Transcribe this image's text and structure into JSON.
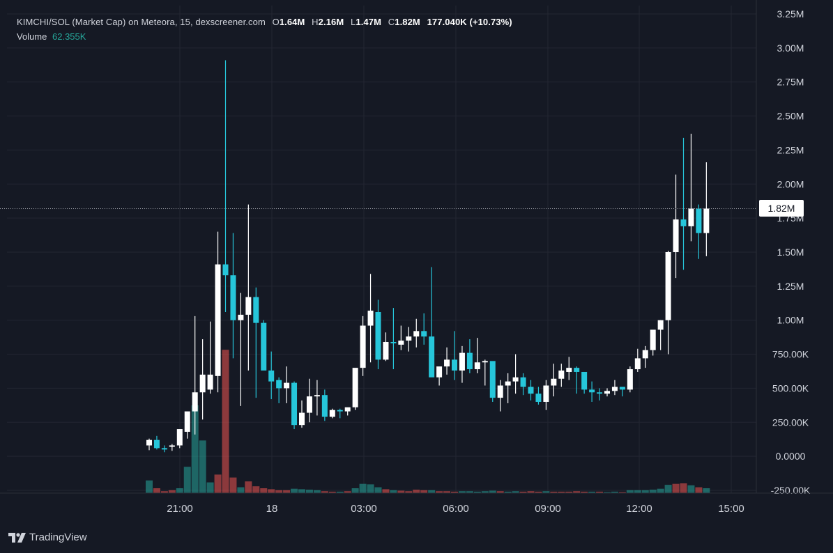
{
  "legend": {
    "pair": "KIMCHI/SOL (Market Cap) on Meteora, 15, dexscreener.com",
    "o_label": "O",
    "o_value": "1.64M",
    "h_label": "H",
    "h_value": "2.16M",
    "l_label": "L",
    "l_value": "1.47M",
    "c_label": "C",
    "c_value": "1.82M",
    "change": "177.040K (+10.73%)",
    "volume_label": "Volume",
    "volume_value": "62.355K"
  },
  "price_tag": "1.82M",
  "branding": "TradingView",
  "colors": {
    "up": "#ffffff",
    "down": "#26c6da",
    "vol_up": "#26a69a",
    "vol_down": "#ef5350",
    "grid": "#232632",
    "text": "#d1d4dc",
    "bg": "#151924"
  },
  "chart_data": {
    "type": "candlestick",
    "y_ticks": [
      "3.25M",
      "3.00M",
      "2.75M",
      "2.50M",
      "2.25M",
      "2.00M",
      "1.75M",
      "1.50M",
      "1.25M",
      "1.00M",
      "750.00K",
      "500.00K",
      "250.00K",
      "0.0000",
      "-250.00K"
    ],
    "y_tick_values": [
      3250000,
      3000000,
      2750000,
      2500000,
      2250000,
      2000000,
      1750000,
      1500000,
      1250000,
      1000000,
      750000,
      500000,
      250000,
      0,
      -250000
    ],
    "x_ticks": [
      "21:00",
      "18",
      "03:00",
      "06:00",
      "09:00",
      "12:00",
      "15:00"
    ],
    "ylim": [
      -250000,
      3250000
    ],
    "last_price": 1820000,
    "grid": true,
    "candles": [
      [
        80,
        130,
        45,
        120
      ],
      [
        120,
        150,
        50,
        60
      ],
      [
        60,
        80,
        30,
        50
      ],
      [
        70,
        90,
        40,
        80
      ],
      [
        80,
        200,
        60,
        200
      ],
      [
        180,
        320,
        130,
        330
      ],
      [
        330,
        1030,
        160,
        470
      ],
      [
        470,
        860,
        270,
        600
      ],
      [
        490,
        990,
        460,
        600
      ],
      [
        590,
        1650,
        470,
        1410
      ],
      [
        1410,
        2910,
        1060,
        1330
      ],
      [
        1330,
        1640,
        720,
        1000
      ],
      [
        1000,
        1200,
        370,
        1040
      ],
      [
        1040,
        1850,
        630,
        1170
      ],
      [
        1170,
        1240,
        430,
        980
      ],
      [
        980,
        1000,
        640,
        630
      ],
      [
        630,
        770,
        420,
        550
      ],
      [
        560,
        580,
        390,
        500
      ],
      [
        500,
        660,
        390,
        540
      ],
      [
        540,
        550,
        200,
        230
      ],
      [
        230,
        410,
        210,
        320
      ],
      [
        320,
        570,
        250,
        440
      ],
      [
        440,
        560,
        300,
        450
      ],
      [
        450,
        490,
        260,
        290
      ],
      [
        290,
        350,
        280,
        340
      ],
      [
        340,
        350,
        280,
        330
      ],
      [
        330,
        340,
        300,
        360
      ],
      [
        360,
        620,
        340,
        650
      ],
      [
        650,
        1030,
        590,
        960
      ],
      [
        960,
        1340,
        690,
        1070
      ],
      [
        1060,
        1150,
        640,
        710
      ],
      [
        710,
        910,
        700,
        840
      ],
      [
        840,
        1090,
        640,
        830
      ],
      [
        820,
        960,
        780,
        850
      ],
      [
        850,
        950,
        770,
        880
      ],
      [
        880,
        1010,
        800,
        920
      ],
      [
        920,
        1050,
        820,
        880
      ],
      [
        880,
        1390,
        760,
        580
      ],
      [
        580,
        650,
        520,
        660
      ],
      [
        660,
        800,
        600,
        710
      ],
      [
        710,
        920,
        560,
        630
      ],
      [
        630,
        810,
        540,
        760
      ],
      [
        760,
        860,
        610,
        640
      ],
      [
        640,
        870,
        610,
        690
      ],
      [
        690,
        710,
        520,
        700
      ],
      [
        700,
        670,
        400,
        430
      ],
      [
        430,
        560,
        330,
        520
      ],
      [
        520,
        610,
        390,
        550
      ],
      [
        550,
        750,
        460,
        580
      ],
      [
        580,
        610,
        450,
        510
      ],
      [
        510,
        560,
        410,
        460
      ],
      [
        460,
        510,
        380,
        400
      ],
      [
        400,
        560,
        340,
        520
      ],
      [
        520,
        680,
        440,
        570
      ],
      [
        570,
        680,
        510,
        630
      ],
      [
        620,
        730,
        560,
        650
      ],
      [
        650,
        660,
        460,
        620
      ],
      [
        620,
        620,
        460,
        490
      ],
      [
        490,
        550,
        400,
        470
      ],
      [
        470,
        500,
        410,
        460
      ],
      [
        460,
        500,
        440,
        480
      ],
      [
        480,
        560,
        450,
        510
      ],
      [
        510,
        510,
        440,
        490
      ],
      [
        490,
        660,
        470,
        640
      ],
      [
        640,
        790,
        620,
        720
      ],
      [
        720,
        810,
        650,
        780
      ],
      [
        780,
        920,
        740,
        930
      ],
      [
        930,
        1000,
        780,
        1000
      ],
      [
        1000,
        1510,
        750,
        1500
      ],
      [
        1500,
        2070,
        1310,
        1740
      ],
      [
        1740,
        2340,
        1370,
        1690
      ],
      [
        1690,
        2370,
        1580,
        1820
      ],
      [
        1820,
        1850,
        1450,
        1640
      ],
      [
        1640,
        2160,
        1470,
        1820
      ]
    ],
    "volume": [
      [
        130,
        "up"
      ],
      [
        50,
        "down"
      ],
      [
        20,
        "down"
      ],
      [
        30,
        "down"
      ],
      [
        50,
        "up"
      ],
      [
        270,
        "up"
      ],
      [
        900,
        "up"
      ],
      [
        540,
        "up"
      ],
      [
        110,
        "up"
      ],
      [
        190,
        "down"
      ],
      [
        1470,
        "down"
      ],
      [
        160,
        "down"
      ],
      [
        60,
        "up"
      ],
      [
        120,
        "down"
      ],
      [
        70,
        "down"
      ],
      [
        50,
        "down"
      ],
      [
        40,
        "down"
      ],
      [
        30,
        "down"
      ],
      [
        30,
        "down"
      ],
      [
        45,
        "up"
      ],
      [
        40,
        "up"
      ],
      [
        35,
        "up"
      ],
      [
        30,
        "up"
      ],
      [
        20,
        "down"
      ],
      [
        15,
        "down"
      ],
      [
        15,
        "up"
      ],
      [
        20,
        "down"
      ],
      [
        50,
        "up"
      ],
      [
        95,
        "up"
      ],
      [
        90,
        "up"
      ],
      [
        60,
        "up"
      ],
      [
        40,
        "down"
      ],
      [
        30,
        "up"
      ],
      [
        25,
        "down"
      ],
      [
        20,
        "down"
      ],
      [
        35,
        "down"
      ],
      [
        30,
        "down"
      ],
      [
        30,
        "up"
      ],
      [
        20,
        "down"
      ],
      [
        20,
        "down"
      ],
      [
        15,
        "down"
      ],
      [
        20,
        "up"
      ],
      [
        20,
        "up"
      ],
      [
        15,
        "up"
      ],
      [
        20,
        "up"
      ],
      [
        25,
        "up"
      ],
      [
        20,
        "down"
      ],
      [
        15,
        "up"
      ],
      [
        20,
        "up"
      ],
      [
        15,
        "down"
      ],
      [
        20,
        "down"
      ],
      [
        15,
        "down"
      ],
      [
        20,
        "up"
      ],
      [
        15,
        "down"
      ],
      [
        15,
        "down"
      ],
      [
        15,
        "down"
      ],
      [
        20,
        "down"
      ],
      [
        15,
        "down"
      ],
      [
        15,
        "up"
      ],
      [
        15,
        "down"
      ],
      [
        10,
        "up"
      ],
      [
        15,
        "up"
      ],
      [
        10,
        "down"
      ],
      [
        30,
        "up"
      ],
      [
        30,
        "up"
      ],
      [
        30,
        "up"
      ],
      [
        35,
        "up"
      ],
      [
        45,
        "up"
      ],
      [
        85,
        "up"
      ],
      [
        95,
        "down"
      ],
      [
        100,
        "down"
      ],
      [
        80,
        "up"
      ],
      [
        60,
        "down"
      ],
      [
        50,
        "up"
      ]
    ]
  }
}
